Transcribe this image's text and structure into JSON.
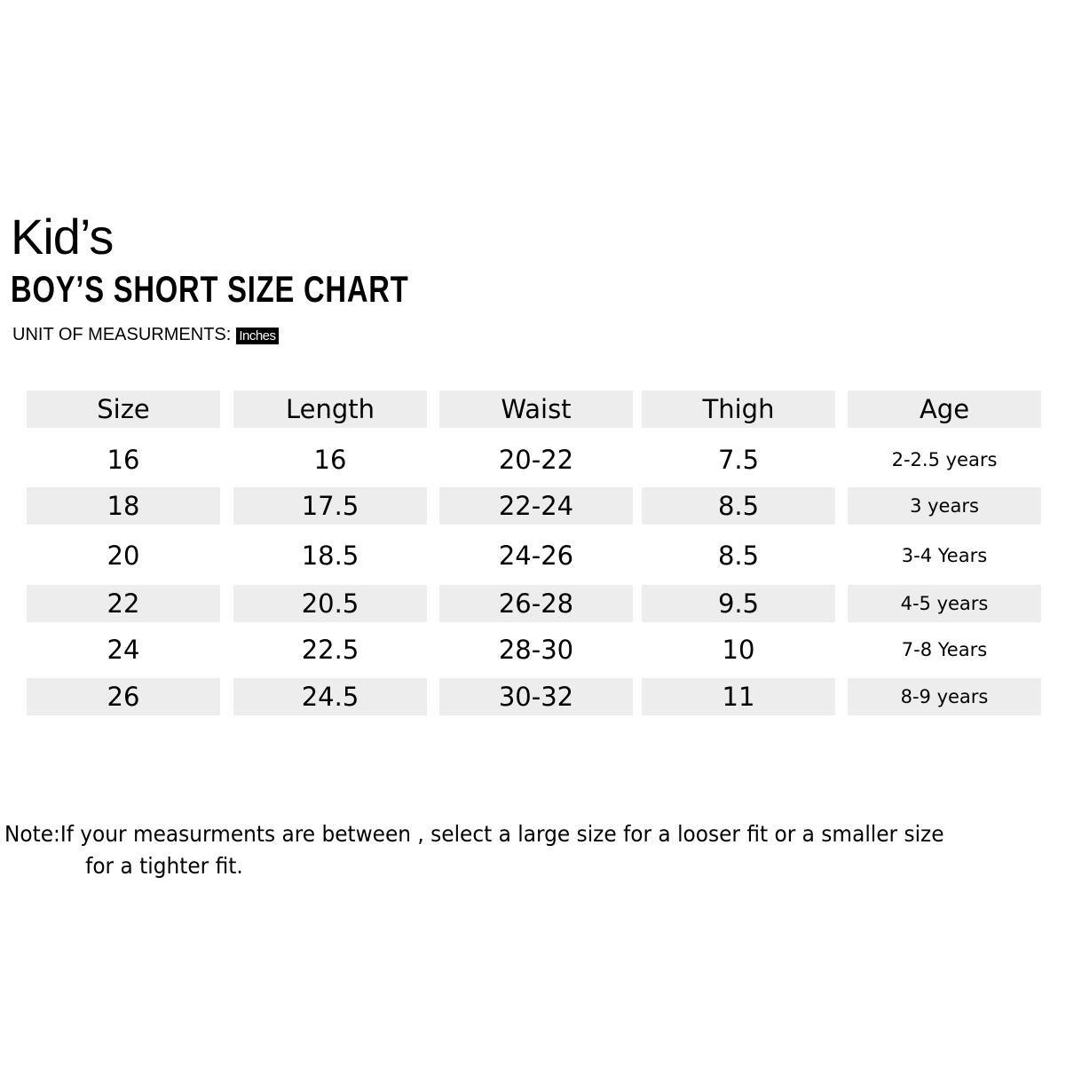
{
  "heading": "Kid’s",
  "title": "BOY’S SHORT SIZE CHART",
  "unit_label": "UNIT OF MEASURMENTS:",
  "unit_value": "Inches",
  "table": {
    "headers": [
      "Size",
      "Length",
      "Waist",
      "Thigh",
      "Age"
    ],
    "rows": [
      [
        "16",
        "16",
        "20-22",
        "7.5",
        "2-2.5 years"
      ],
      [
        "18",
        "17.5",
        "22-24",
        "8.5",
        "3 years"
      ],
      [
        "20",
        "18.5",
        "24-26",
        "8.5",
        "3-4 Years"
      ],
      [
        "22",
        "20.5",
        "26-28",
        "9.5",
        "4-5 years"
      ],
      [
        "24",
        "22.5",
        "28-30",
        "10",
        "7-8 Years"
      ],
      [
        "26",
        "24.5",
        "30-32",
        "11",
        "8-9 years"
      ]
    ],
    "shade_color": "#ededed"
  },
  "note": {
    "line1": "Note:If your measurments are between , select a large size for a looser fit or a smaller size",
    "line2": "for a tighter fit."
  }
}
